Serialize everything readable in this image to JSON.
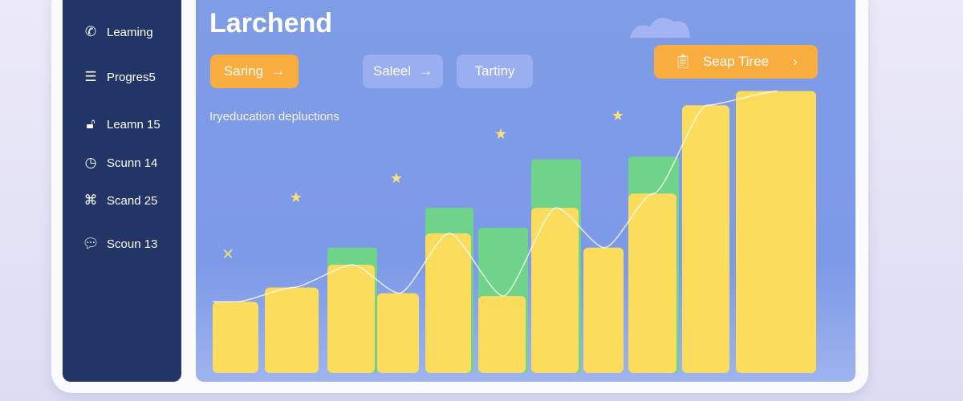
{
  "sidebar": {
    "items": [
      {
        "label": "Leaming",
        "icon": "phone-icon"
      },
      {
        "label": "Progres5",
        "icon": "list-icon"
      },
      {
        "label": "Leamn 15",
        "icon": "lock-icon"
      },
      {
        "label": "Scunn 14",
        "icon": "clock-icon"
      },
      {
        "label": "Scand 25",
        "icon": "grid-icon"
      },
      {
        "label": "Scoun 13",
        "icon": "chat-icon"
      }
    ]
  },
  "main": {
    "title": "Larchend",
    "subtitle": "Iryeducation depluctions",
    "buttons": {
      "saring": "Saring",
      "saleel": "Saleel",
      "tartiny": "Tartiny",
      "seap_tiree": "Seap Tiree"
    }
  },
  "colors": {
    "sidebar": "#233466",
    "panel": "#7f9ce6",
    "accent": "#f9ad3f",
    "bar_yellow": "#fcdc5c",
    "bar_green": "#6fd48a"
  },
  "chart_data": {
    "type": "bar",
    "axes": "none",
    "grid": false,
    "series": [
      {
        "values": [
          25,
          30,
          38,
          28,
          49,
          27,
          58,
          44,
          63,
          94,
          99
        ]
      },
      {
        "values": [
          null,
          null,
          44,
          null,
          58,
          51,
          75,
          null,
          76,
          null,
          null
        ]
      }
    ]
  }
}
